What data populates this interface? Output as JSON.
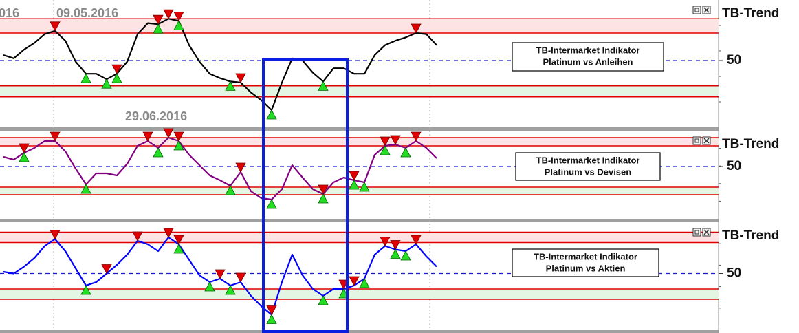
{
  "chart_data": [
    {
      "type": "line",
      "title": "TB-Trend",
      "color": "#000000",
      "box_text": [
        "TB-Intermarket Indikator",
        "Platinum vs Anleihen"
      ],
      "date_labels": [
        "016",
        "09.05.2016",
        "29.06.2016"
      ],
      "ylim": [
        0,
        100
      ],
      "yticks": [
        50
      ],
      "grid": true,
      "upper_band": [
        75,
        88
      ],
      "lower_band": [
        17,
        27
      ],
      "values": [
        55,
        52,
        60,
        66,
        74,
        77,
        68,
        49,
        38,
        38,
        33,
        38,
        49,
        74,
        84,
        83,
        88,
        86,
        64,
        49,
        38,
        34,
        31,
        30,
        21,
        14,
        5,
        30,
        52,
        50,
        39,
        31,
        43,
        43,
        38,
        38,
        55,
        64,
        68,
        71,
        75,
        74,
        64
      ],
      "down_signals": [
        5,
        11,
        15,
        16,
        17,
        23,
        40
      ],
      "up_signals": [
        8,
        10,
        11,
        15,
        17,
        22,
        26,
        31
      ]
    },
    {
      "type": "line",
      "title": "TB-Trend",
      "color": "#800080",
      "box_text": [
        "TB-Intermarket Indikator",
        "Platinum vs Devisen"
      ],
      "ylim": [
        0,
        100
      ],
      "yticks": [
        50
      ],
      "grid": true,
      "upper_band": [
        80,
        92
      ],
      "lower_band": [
        9,
        20
      ],
      "values": [
        64,
        60,
        70,
        77,
        87,
        87,
        72,
        47,
        24,
        40,
        40,
        37,
        54,
        80,
        87,
        77,
        92,
        87,
        67,
        52,
        37,
        30,
        22,
        42,
        14,
        4,
        2,
        17,
        52,
        34,
        17,
        10,
        27,
        34,
        30,
        27,
        67,
        80,
        82,
        77,
        87,
        77,
        62
      ],
      "down_signals": [
        2,
        5,
        14,
        16,
        17,
        23,
        31,
        34,
        37,
        38,
        40
      ],
      "up_signals": [
        2,
        8,
        15,
        17,
        22,
        26,
        31,
        34,
        35,
        37,
        39
      ]
    },
    {
      "type": "line",
      "title": "TB-Trend",
      "color": "#0000ff",
      "box_text": [
        "TB-Intermarket Indikator",
        "Platinum vs Aktien"
      ],
      "ylim": [
        0,
        100
      ],
      "yticks": [
        50
      ],
      "grid": true,
      "upper_band": [
        86,
        98
      ],
      "lower_band": [
        20,
        32
      ],
      "values": [
        52,
        50,
        58,
        68,
        82,
        90,
        76,
        56,
        36,
        40,
        50,
        60,
        72,
        88,
        84,
        76,
        92,
        84,
        66,
        48,
        40,
        44,
        36,
        40,
        24,
        12,
        2,
        40,
        72,
        48,
        32,
        24,
        32,
        32,
        36,
        44,
        72,
        82,
        78,
        76,
        84,
        70,
        58
      ],
      "down_signals": [
        5,
        10,
        13,
        16,
        17,
        21,
        23,
        26,
        33,
        34,
        37,
        38,
        40
      ],
      "up_signals": [
        8,
        17,
        20,
        22,
        26,
        31,
        33,
        35,
        38,
        39
      ]
    }
  ]
}
